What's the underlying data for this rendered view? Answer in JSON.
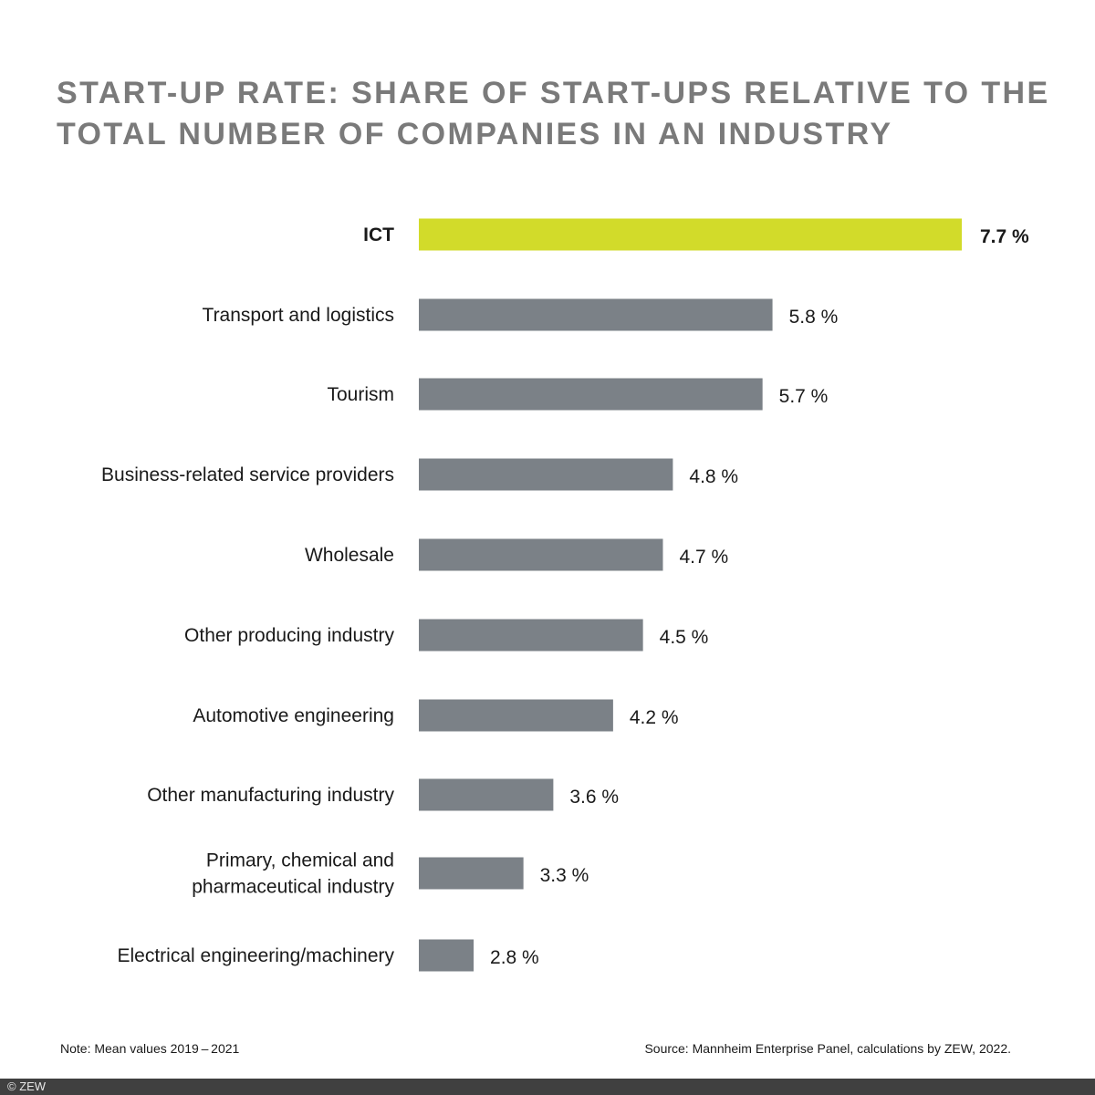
{
  "chart_data": {
    "type": "bar",
    "orientation": "horizontal",
    "title_lines": [
      "START-UP RATE: SHARE OF START-UPS RELATIVE TO THE",
      "TOTAL NUMBER OF COMPANIES IN AN INDUSTRY"
    ],
    "xlabel": "",
    "ylabel": "",
    "unit": "%",
    "categories": [
      [
        "ICT"
      ],
      [
        "Transport and logistics"
      ],
      [
        "Tourism"
      ],
      [
        "Business-related service providers"
      ],
      [
        "Wholesale"
      ],
      [
        "Other producing industry"
      ],
      [
        "Automotive engineering"
      ],
      [
        "Other manufacturing industry"
      ],
      [
        "Primary, chemical and",
        "pharmaceutical industry"
      ],
      [
        "Electrical engineering/machinery"
      ]
    ],
    "values": [
      7.7,
      5.8,
      5.7,
      4.8,
      4.7,
      4.5,
      4.2,
      3.6,
      3.3,
      2.8
    ],
    "value_labels": [
      "7.7 %",
      "5.8 %",
      "5.7 %",
      "4.8 %",
      "4.7 %",
      "4.5 %",
      "4.2 %",
      "3.6 %",
      "3.3 %",
      "2.8 %"
    ],
    "highlight_index": 0,
    "colors": {
      "highlight": "#d2db2a",
      "default": "#7b8187"
    },
    "xlim": [
      2.25,
      7.7
    ],
    "grid": false,
    "legend": "none"
  },
  "notes": {
    "note": "Note: Mean values 2019 – 2021",
    "source": "Source: Mannheim Enterprise Panel, calculations by ZEW, 2022."
  },
  "footer": {
    "copyright": "© ZEW"
  }
}
